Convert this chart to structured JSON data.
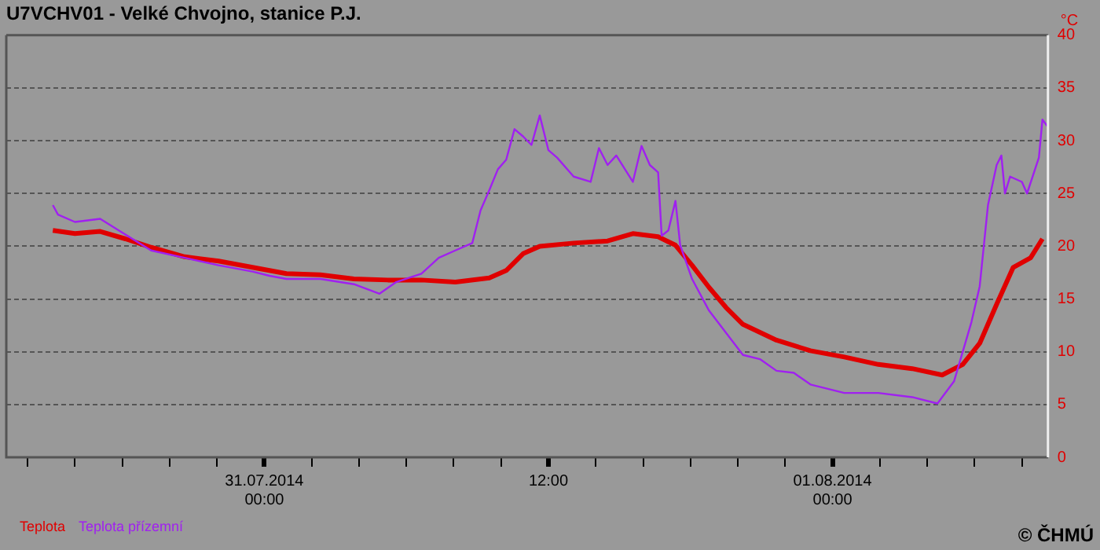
{
  "chart_data": {
    "type": "line",
    "title": "U7VCHV01 - Velké Chvojno, stanice P.J.",
    "ylabel": "°C",
    "annotations": [
      "© ČHMÚ"
    ],
    "xlim": [
      "2014-07-30T13:06",
      "2014-08-01T09:06"
    ],
    "xticks": [
      {
        "value": "2014-07-30T14:00",
        "label": null
      },
      {
        "value": "2014-07-30T16:00",
        "label": null
      },
      {
        "value": "2014-07-30T18:00",
        "label": null
      },
      {
        "value": "2014-07-30T20:00",
        "label": null
      },
      {
        "value": "2014-07-30T22:00",
        "label": null
      },
      {
        "value": "2014-07-31T00:00",
        "label": "31.07.2014 00:00"
      },
      {
        "value": "2014-07-31T02:00",
        "label": null
      },
      {
        "value": "2014-07-31T04:00",
        "label": null
      },
      {
        "value": "2014-07-31T06:00",
        "label": null
      },
      {
        "value": "2014-07-31T08:00",
        "label": null
      },
      {
        "value": "2014-07-31T10:00",
        "label": null
      },
      {
        "value": "2014-07-31T12:00",
        "label": "12:00"
      },
      {
        "value": "2014-07-31T14:00",
        "label": null
      },
      {
        "value": "2014-07-31T16:00",
        "label": null
      },
      {
        "value": "2014-07-31T18:00",
        "label": null
      },
      {
        "value": "2014-07-31T20:00",
        "label": null
      },
      {
        "value": "2014-07-31T22:00",
        "label": null
      },
      {
        "value": "2014-08-01T00:00",
        "label": "01.08.2014 00:00"
      },
      {
        "value": "2014-08-01T02:00",
        "label": null
      },
      {
        "value": "2014-08-01T04:00",
        "label": null
      },
      {
        "value": "2014-08-01T06:00",
        "label": null
      },
      {
        "value": "2014-08-01T08:00",
        "label": null
      }
    ],
    "ylim": [
      0,
      40
    ],
    "yticks": [
      0,
      5,
      10,
      15,
      20,
      25,
      30,
      35,
      40
    ],
    "grid": "y",
    "legend": "bottom left",
    "marker": "none",
    "line_style": "solid",
    "series": [
      {
        "name": "Teplota",
        "color": "#e00000",
        "x": [
          "2014-07-30T15:04",
          "2014-07-30T16:00",
          "2014-07-30T17:04",
          "2014-07-30T18:08",
          "2014-07-30T19:13",
          "2014-07-30T20:38",
          "2014-07-30T22:04",
          "2014-07-30T23:30",
          "2014-07-31T00:56",
          "2014-07-31T02:22",
          "2014-07-31T03:47",
          "2014-07-31T05:13",
          "2014-07-31T06:38",
          "2014-07-31T08:04",
          "2014-07-31T09:30",
          "2014-07-31T10:13",
          "2014-07-31T10:56",
          "2014-07-31T11:38",
          "2014-07-31T13:04",
          "2014-07-31T14:30",
          "2014-07-31T15:34",
          "2014-07-31T16:38",
          "2014-07-31T17:00",
          "2014-07-31T17:22",
          "2014-07-31T18:04",
          "2014-07-31T18:47",
          "2014-07-31T19:30",
          "2014-07-31T20:13",
          "2014-07-31T21:38",
          "2014-07-31T23:04",
          "2014-08-01T00:30",
          "2014-08-01T01:56",
          "2014-08-01T03:22",
          "2014-08-01T04:38",
          "2014-08-01T05:30",
          "2014-08-01T06:13",
          "2014-08-01T06:56",
          "2014-08-01T07:38",
          "2014-08-01T08:22",
          "2014-08-01T08:52"
        ],
        "values": [
          21.5,
          21.2,
          21.4,
          20.7,
          19.9,
          19.0,
          18.6,
          18.0,
          17.4,
          17.3,
          16.9,
          16.8,
          16.8,
          16.6,
          17.0,
          17.7,
          19.3,
          20.0,
          20.3,
          20.5,
          21.2,
          20.9,
          20.5,
          20.1,
          18.2,
          16.1,
          14.2,
          12.6,
          11.1,
          10.1,
          9.5,
          8.8,
          8.4,
          7.8,
          8.8,
          10.8,
          14.5,
          18.0,
          18.9,
          20.7
        ]
      },
      {
        "name": "Teplota přízemní",
        "color": "#a020f0",
        "x": [
          "2014-07-30T15:04",
          "2014-07-30T15:17",
          "2014-07-30T16:00",
          "2014-07-30T17:04",
          "2014-07-30T17:47",
          "2014-07-30T19:13",
          "2014-07-30T20:38",
          "2014-07-30T22:04",
          "2014-07-30T23:30",
          "2014-07-31T00:13",
          "2014-07-31T00:56",
          "2014-07-31T02:22",
          "2014-07-31T03:47",
          "2014-07-31T04:52",
          "2014-07-31T05:34",
          "2014-07-31T06:38",
          "2014-07-31T07:22",
          "2014-07-31T08:04",
          "2014-07-31T08:47",
          "2014-07-31T09:08",
          "2014-07-31T09:30",
          "2014-07-31T09:52",
          "2014-07-31T10:13",
          "2014-07-31T10:34",
          "2014-07-31T10:56",
          "2014-07-31T11:17",
          "2014-07-31T11:38",
          "2014-07-31T12:00",
          "2014-07-31T12:22",
          "2014-07-31T13:04",
          "2014-07-31T13:47",
          "2014-07-31T14:08",
          "2014-07-31T14:30",
          "2014-07-31T14:52",
          "2014-07-31T15:34",
          "2014-07-31T15:56",
          "2014-07-31T16:17",
          "2014-07-31T16:38",
          "2014-07-31T16:47",
          "2014-07-31T17:04",
          "2014-07-31T17:22",
          "2014-07-31T17:34",
          "2014-07-31T18:04",
          "2014-07-31T18:47",
          "2014-07-31T20:13",
          "2014-07-31T20:56",
          "2014-07-31T21:38",
          "2014-07-31T22:22",
          "2014-07-31T23:04",
          "2014-08-01T00:30",
          "2014-08-01T01:56",
          "2014-08-01T03:22",
          "2014-08-01T04:26",
          "2014-08-01T05:08",
          "2014-08-01T05:52",
          "2014-08-01T06:13",
          "2014-08-01T06:34",
          "2014-08-01T06:56",
          "2014-08-01T07:08",
          "2014-08-01T07:17",
          "2014-08-01T07:30",
          "2014-08-01T08:00",
          "2014-08-01T08:13",
          "2014-08-01T08:43",
          "2014-08-01T08:52",
          "2014-08-01T09:04"
        ],
        "values": [
          23.9,
          23.0,
          22.3,
          22.6,
          21.6,
          19.6,
          18.9,
          18.2,
          17.6,
          17.2,
          16.9,
          16.9,
          16.4,
          15.5,
          16.6,
          17.4,
          18.9,
          19.6,
          20.3,
          23.4,
          25.3,
          27.3,
          28.2,
          31.1,
          30.4,
          29.6,
          32.4,
          29.1,
          28.4,
          26.6,
          26.1,
          29.3,
          27.7,
          28.6,
          26.1,
          29.5,
          27.7,
          27.0,
          21.0,
          21.5,
          24.3,
          20.1,
          16.9,
          13.9,
          9.7,
          9.3,
          8.2,
          8.0,
          6.9,
          6.1,
          6.1,
          5.7,
          5.1,
          7.2,
          12.8,
          16.2,
          23.9,
          27.7,
          28.6,
          25.0,
          26.6,
          26.1,
          25.0,
          28.4,
          32.0,
          31.4
        ]
      }
    ]
  }
}
